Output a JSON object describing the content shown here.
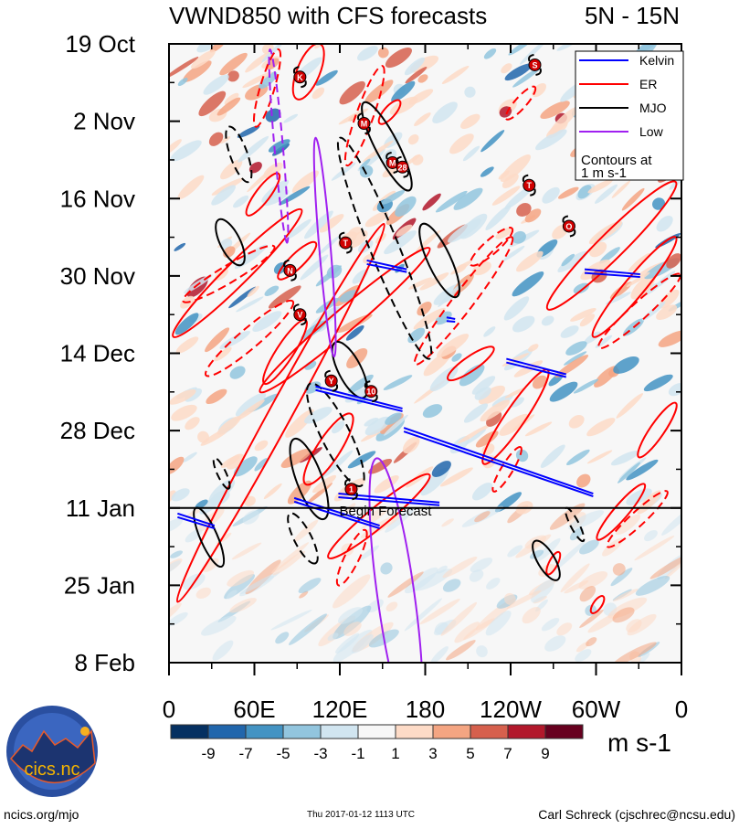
{
  "chart_data": {
    "type": "heatmap",
    "title": "VWND850 with CFS forecasts",
    "subtitle": "5N - 15N",
    "xlabel": "",
    "ylabel": "",
    "x_ticks": [
      {
        "lon": 0,
        "label": "0"
      },
      {
        "lon": 60,
        "label": "60E"
      },
      {
        "lon": 120,
        "label": "120E"
      },
      {
        "lon": 180,
        "label": "180"
      },
      {
        "lon": 240,
        "label": "120W"
      },
      {
        "lon": 300,
        "label": "60W"
      },
      {
        "lon": 360,
        "label": "0"
      }
    ],
    "xlim": [
      0,
      360
    ],
    "y_ticks": [
      {
        "day": 0,
        "label": "19 Oct"
      },
      {
        "day": 14,
        "label": "2 Nov"
      },
      {
        "day": 28,
        "label": "16 Nov"
      },
      {
        "day": 42,
        "label": "30 Nov"
      },
      {
        "day": 56,
        "label": "14 Dec"
      },
      {
        "day": 70,
        "label": "28 Dec"
      },
      {
        "day": 84,
        "label": "11 Jan"
      },
      {
        "day": 98,
        "label": "25 Jan"
      },
      {
        "day": 112,
        "label": "8 Feb"
      }
    ],
    "ylim_days": [
      0,
      112
    ],
    "forecast_start_day": 84,
    "forecast_label": "Begin Forecast",
    "colorbar": {
      "levels": [
        "-9",
        "-7",
        "-5",
        "-3",
        "-1",
        "1",
        "3",
        "5",
        "7",
        "9"
      ],
      "colors": [
        "#053061",
        "#2166ac",
        "#4393c3",
        "#92c5de",
        "#d1e5f0",
        "#f7f7f7",
        "#fddbc7",
        "#f4a582",
        "#d6604d",
        "#b2182b",
        "#67001f"
      ],
      "units": "m s-1"
    },
    "legend": {
      "placement": "top-right",
      "entries": [
        {
          "label": "Kelvin",
          "color": "#0000ff"
        },
        {
          "label": "ER",
          "color": "#ff0000"
        },
        {
          "label": "MJO",
          "color": "#000000"
        },
        {
          "label": "Low",
          "color": "#a020f0"
        }
      ],
      "note_line1": "Contours at",
      "note_line2": "1 m s-1"
    },
    "contours": {
      "mjo": [
        {
          "lon": [
            137,
            169
          ],
          "day": [
            10.6,
            26.5
          ],
          "w": 8,
          "dash": false
        },
        {
          "lon": [
            35,
            51
          ],
          "day": [
            31.8,
            40
          ],
          "w": 7,
          "dash": false
        },
        {
          "lon": [
            178,
            202
          ],
          "day": [
            32.6,
            45.8
          ],
          "w": 8,
          "dash": false
        },
        {
          "lon": [
            117,
            137
          ],
          "day": [
            54,
            64
          ],
          "w": 8,
          "dash": false
        },
        {
          "lon": [
            88,
            109
          ],
          "day": [
            71.5,
            86
          ],
          "w": 9,
          "dash": false
        },
        {
          "lon": [
            19,
            37
          ],
          "day": [
            84,
            94.6
          ],
          "w": 6,
          "dash": false
        },
        {
          "lon": [
            257,
            273
          ],
          "day": [
            90,
            97
          ],
          "w": 6,
          "dash": false
        },
        {
          "lon": [
            42,
            56
          ],
          "day": [
            15,
            25
          ],
          "w": 6,
          "dash": true
        },
        {
          "lon": [
            120,
            183
          ],
          "day": [
            17,
            57
          ],
          "w": 10,
          "dash": true
        },
        {
          "lon": [
            99,
            135
          ],
          "day": [
            61.5,
            80
          ],
          "w": 10,
          "dash": true
        },
        {
          "lon": [
            85,
            103
          ],
          "day": [
            85,
            94
          ],
          "w": 6,
          "dash": true
        },
        {
          "lon": [
            32,
            42
          ],
          "day": [
            75,
            80.5
          ],
          "w": 3,
          "dash": true
        },
        {
          "lon": [
            279,
            291
          ],
          "day": [
            84,
            90
          ],
          "w": 3,
          "dash": true
        }
      ],
      "er": [
        {
          "lon": [
            6,
            151
          ],
          "day": [
            101,
            32.6
          ],
          "w": 8,
          "dash": false
        },
        {
          "lon": [
            3,
            93
          ],
          "day": [
            53,
            30
          ],
          "w": 8,
          "dash": false
        },
        {
          "lon": [
            64,
            183
          ],
          "day": [
            63,
            37
          ],
          "w": 8,
          "dash": false
        },
        {
          "lon": [
            90,
            106
          ],
          "day": [
            10,
            0
          ],
          "w": 8,
          "dash": false
        },
        {
          "lon": [
            55,
            77
          ],
          "day": [
            31,
            23.5
          ],
          "w": 5,
          "dash": false
        },
        {
          "lon": [
            77,
            103
          ],
          "day": [
            42.5,
            36
          ],
          "w": 5,
          "dash": false
        },
        {
          "lon": [
            67,
            96
          ],
          "day": [
            61.5,
            50
          ],
          "w": 6,
          "dash": false
        },
        {
          "lon": [
            96,
            128
          ],
          "day": [
            79.7,
            67
          ],
          "w": 8,
          "dash": false
        },
        {
          "lon": [
            196,
            228
          ],
          "day": [
            60.7,
            55
          ],
          "w": 5,
          "dash": false
        },
        {
          "lon": [
            221,
            266
          ],
          "day": [
            76,
            59
          ],
          "w": 7,
          "dash": false
        },
        {
          "lon": [
            266,
            356
          ],
          "day": [
            48,
            25
          ],
          "w": 9,
          "dash": false
        },
        {
          "lon": [
            298,
            356
          ],
          "day": [
            53,
            35
          ],
          "w": 7,
          "dash": false
        },
        {
          "lon": [
            330,
            356
          ],
          "day": [
            74.8,
            65
          ],
          "w": 5,
          "dash": false
        },
        {
          "lon": [
            301,
            334
          ],
          "day": [
            89.7,
            79.7
          ],
          "w": 5,
          "dash": false
        },
        {
          "lon": [
            112,
            183
          ],
          "day": [
            93,
            78
          ],
          "w": 7,
          "dash": false
        },
        {
          "lon": [
            266,
            274
          ],
          "day": [
            96,
            92
          ],
          "w": 3,
          "dash": false
        },
        {
          "lon": [
            297,
            305
          ],
          "day": [
            103,
            100
          ],
          "w": 3,
          "dash": false
        },
        {
          "lon": [
            148,
            162
          ],
          "day": [
            14.4,
            10.3
          ],
          "w": 4,
          "dash": false
        },
        {
          "lon": [
            61,
            77
          ],
          "day": [
            15,
            1
          ],
          "w": 5,
          "dash": true
        },
        {
          "lon": [
            10,
            74
          ],
          "day": [
            46.6,
            36.7
          ],
          "w": 6,
          "dash": true
        },
        {
          "lon": [
            26,
            87
          ],
          "day": [
            60,
            46.6
          ],
          "w": 7,
          "dash": true
        },
        {
          "lon": [
            173,
            241
          ],
          "day": [
            58,
            35
          ],
          "w": 7,
          "dash": true
        },
        {
          "lon": [
            212,
            241
          ],
          "day": [
            40,
            33.4
          ],
          "w": 5,
          "dash": true
        },
        {
          "lon": [
            302,
            359
          ],
          "day": [
            55,
            41.7
          ],
          "w": 6,
          "dash": true
        },
        {
          "lon": [
            228,
            247
          ],
          "day": [
            81,
            73
          ],
          "w": 4,
          "dash": true
        },
        {
          "lon": [
            308,
            350
          ],
          "day": [
            91,
            81
          ],
          "w": 5,
          "dash": true
        },
        {
          "lon": [
            119,
            138
          ],
          "day": [
            98,
            88
          ],
          "w": 5,
          "dash": true
        },
        {
          "lon": [
            237,
            257
          ],
          "day": [
            13.6,
            7.8
          ],
          "w": 4,
          "dash": true
        },
        {
          "lon": [
            125,
            150
          ],
          "day": [
            22,
            4
          ],
          "w": 6,
          "dash": true
        }
      ],
      "kelvin": [
        {
          "lon": [
            103,
            164
          ],
          "day": [
            62,
            66
          ]
        },
        {
          "lon": [
            165,
            298
          ],
          "day": [
            69.5,
            81.4
          ]
        },
        {
          "lon": [
            237,
            279
          ],
          "day": [
            57,
            59.8
          ]
        },
        {
          "lon": [
            88,
            148
          ],
          "day": [
            82.2,
            87.2
          ]
        },
        {
          "lon": [
            119,
            190
          ],
          "day": [
            81.4,
            83
          ]
        },
        {
          "lon": [
            139,
            167
          ],
          "day": [
            39.2,
            40.8
          ]
        },
        {
          "lon": [
            292,
            331
          ],
          "day": [
            40.8,
            41.7
          ]
        },
        {
          "lon": [
            6,
            32
          ],
          "day": [
            85,
            87.2
          ]
        },
        {
          "lon": [
            195,
            201
          ],
          "day": [
            49.5,
            49.8
          ]
        }
      ],
      "low": [
        {
          "lon": [
            103,
            116
          ],
          "day": [
            17,
            56.6
          ],
          "w": 4,
          "dash": false
        },
        {
          "lon": [
            71,
            83
          ],
          "day": [
            1,
            36
          ],
          "w": 3,
          "dash": true
        },
        {
          "lon": [
            146,
            173
          ],
          "day": [
            75,
            125
          ],
          "w": 13,
          "dash": false
        }
      ]
    },
    "storms": [
      {
        "label": "K",
        "lon": 92,
        "day": 6
      },
      {
        "label": "M",
        "lon": 137,
        "day": 14.4
      },
      {
        "label": "M",
        "lon": 157,
        "day": 21.5
      },
      {
        "label": "28",
        "lon": 164,
        "day": 22.3
      },
      {
        "label": "S",
        "lon": 257,
        "day": 3.8
      },
      {
        "label": "T",
        "lon": 253,
        "day": 25.6
      },
      {
        "label": "O",
        "lon": 281,
        "day": 33
      },
      {
        "label": "T",
        "lon": 124,
        "day": 36
      },
      {
        "label": "N",
        "lon": 85,
        "day": 41
      },
      {
        "label": "V",
        "lon": 92,
        "day": 49
      },
      {
        "label": "Y",
        "lon": 114,
        "day": 61
      },
      {
        "label": "10",
        "lon": 142,
        "day": 62.9
      },
      {
        "label": "1",
        "lon": 128,
        "day": 80.6
      }
    ]
  },
  "footer": {
    "logo_text": "cics.nc",
    "logo_ring_text": "Cooperative Institute for Climate and Satellites",
    "site": "ncics.org/mjo",
    "timestamp": "Thu 2017-01-12 1113 UTC",
    "author": "Carl Schreck (cjschrec@ncsu.edu)"
  }
}
